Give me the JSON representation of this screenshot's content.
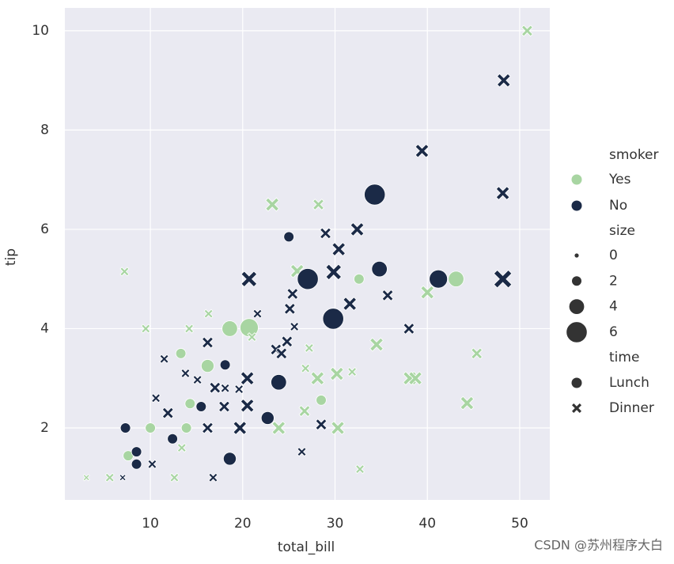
{
  "chart_data": {
    "type": "scatter",
    "xlabel": "total_bill",
    "ylabel": "tip",
    "xlim": [
      0.74,
      53.26
    ],
    "ylim": [
      0.55,
      10.46
    ],
    "xticks": [
      10,
      20,
      30,
      40,
      50
    ],
    "yticks": [
      2,
      4,
      6,
      8,
      10
    ],
    "grid": true,
    "legend_title": "smoker",
    "legend_position": "right",
    "series": [
      {
        "name": "Yes",
        "color": "#a8d5a2",
        "x": [
          50.81,
          23.2,
          28.2,
          25.9,
          43.11,
          32.6,
          40.0,
          45.35,
          44.3,
          38.1,
          38.7,
          34.5,
          32.7,
          30.3,
          30.2,
          28.1,
          28.5,
          23.9,
          20.7,
          18.6,
          7.2,
          9.5,
          3.07,
          5.6,
          14.2,
          16.3,
          13.3,
          16.2,
          13.9,
          10.0,
          13.4,
          12.6,
          7.6,
          21.0,
          27.2,
          26.8,
          26.7,
          31.85,
          14.3
        ],
        "values": [
          10,
          6.5,
          6.5,
          5.16,
          5.0,
          5.0,
          4.73,
          3.5,
          2.5,
          3.0,
          3.0,
          3.68,
          1.17,
          2.0,
          3.09,
          3.0,
          2.56,
          2.0,
          4.02,
          4.0,
          5.15,
          4.0,
          1.0,
          1.0,
          4.0,
          4.3,
          3.5,
          3.25,
          2.0,
          2.0,
          1.6,
          1.0,
          1.44,
          3.83,
          3.61,
          3.2,
          2.34,
          3.13,
          2.49
        ],
        "sizes": [
          3,
          4,
          3,
          4,
          4,
          2,
          4,
          3,
          4,
          4,
          4,
          4,
          2,
          4,
          4,
          4,
          2,
          4,
          5,
          4,
          2,
          2,
          1,
          2,
          2,
          2,
          2,
          3,
          2,
          2,
          2,
          2,
          2,
          2,
          2,
          2,
          3,
          2,
          2
        ],
        "time": [
          "Dinner",
          "Dinner",
          "Dinner",
          "Dinner",
          "Lunch",
          "Lunch",
          "Dinner",
          "Dinner",
          "Dinner",
          "Dinner",
          "Dinner",
          "Dinner",
          "Dinner",
          "Dinner",
          "Dinner",
          "Dinner",
          "Lunch",
          "Dinner",
          "Lunch",
          "Lunch",
          "Dinner",
          "Dinner",
          "Dinner",
          "Dinner",
          "Dinner",
          "Dinner",
          "Lunch",
          "Lunch",
          "Lunch",
          "Lunch",
          "Dinner",
          "Dinner",
          "Lunch",
          "Dinner",
          "Dinner",
          "Dinner",
          "Dinner",
          "Dinner",
          "Lunch"
        ]
      },
      {
        "name": "No",
        "color": "#1b2a47",
        "x": [
          48.27,
          39.42,
          48.17,
          34.3,
          48.17,
          41.19,
          34.81,
          27.05,
          29.8,
          20.69,
          29.85,
          32.4,
          30.4,
          28.97,
          25.0,
          38.0,
          31.6,
          35.7,
          28.5,
          23.9,
          22.7,
          26.4,
          19.7,
          20.5,
          20.5,
          18.6,
          16.8,
          7.3,
          7.0,
          11.5,
          18.1,
          15.5,
          8.5,
          8.5,
          12.4,
          10.2,
          16.2,
          17.0,
          18.1,
          19.6,
          21.6,
          23.6,
          25.1,
          25.6,
          24.8,
          24.2,
          25.4,
          16.2,
          13.8,
          15.1,
          18.0,
          10.6,
          11.9
        ],
        "values": [
          9.0,
          7.58,
          6.73,
          6.7,
          5.0,
          5.0,
          5.2,
          5.0,
          4.2,
          5.0,
          5.14,
          6.0,
          5.6,
          5.92,
          5.85,
          4.0,
          4.5,
          4.67,
          2.07,
          2.92,
          2.2,
          1.52,
          2.0,
          2.45,
          3.0,
          1.38,
          1.0,
          2.0,
          1.0,
          3.39,
          3.27,
          2.43,
          1.52,
          1.27,
          1.78,
          1.27,
          2.0,
          2.81,
          2.8,
          2.78,
          4.3,
          3.58,
          4.4,
          4.04,
          3.74,
          3.5,
          4.7,
          3.72,
          3.1,
          2.97,
          2.43,
          2.6,
          2.3
        ],
        "sizes": [
          4,
          4,
          4,
          6,
          6,
          5,
          4,
          6,
          6,
          5,
          5,
          4,
          4,
          3,
          2,
          3,
          4,
          3,
          3,
          4,
          3,
          2,
          4,
          4,
          4,
          3,
          2,
          2,
          1,
          2,
          2,
          2,
          2,
          2,
          2,
          2,
          3,
          3,
          2,
          2,
          2,
          3,
          3,
          2,
          3,
          3,
          3,
          3,
          2,
          2,
          3,
          2,
          3
        ],
        "time": [
          "Dinner",
          "Dinner",
          "Dinner",
          "Lunch",
          "Dinner",
          "Lunch",
          "Lunch",
          "Lunch",
          "Lunch",
          "Dinner",
          "Dinner",
          "Dinner",
          "Dinner",
          "Dinner",
          "Lunch",
          "Dinner",
          "Dinner",
          "Dinner",
          "Dinner",
          "Lunch",
          "Lunch",
          "Dinner",
          "Dinner",
          "Dinner",
          "Dinner",
          "Lunch",
          "Dinner",
          "Lunch",
          "Dinner",
          "Dinner",
          "Lunch",
          "Lunch",
          "Lunch",
          "Lunch",
          "Lunch",
          "Dinner",
          "Dinner",
          "Dinner",
          "Dinner",
          "Dinner",
          "Dinner",
          "Dinner",
          "Dinner",
          "Dinner",
          "Dinner",
          "Dinner",
          "Dinner",
          "Dinner",
          "Dinner",
          "Dinner",
          "Dinner",
          "Dinner",
          "Dinner"
        ]
      }
    ],
    "size_legend": {
      "title": "size",
      "values": [
        0,
        2,
        4,
        6
      ]
    },
    "time_legend": {
      "title": "time",
      "labels": [
        "Lunch",
        "Dinner"
      ]
    },
    "watermark": "CSDN @苏州程序大白"
  }
}
